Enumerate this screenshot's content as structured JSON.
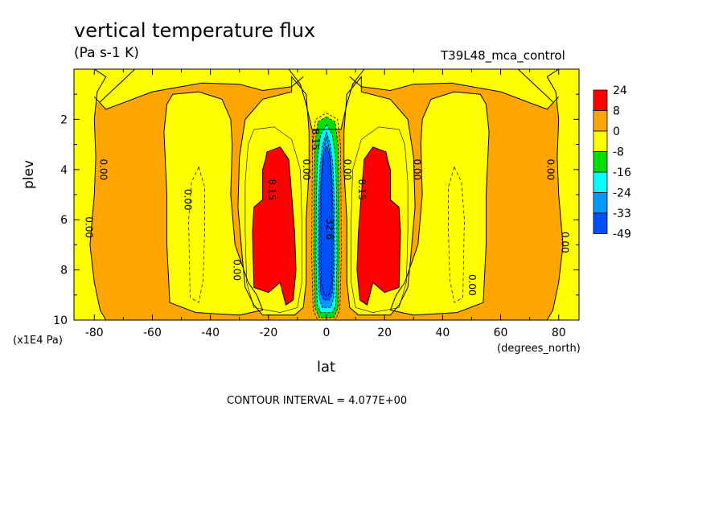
{
  "title": "vertical temperature flux",
  "units": "(Pa s-1 K)",
  "run_id": "T39L48_mca_control",
  "contour_interval": "CONTOUR INTERVAL = 4.077E+00",
  "colors": {
    "c24": "#ff0000",
    "c8": "#ffa500",
    "c0": "#ffff00",
    "cm8": "#00e000",
    "cm16": "#00ffff",
    "cm24": "#0099ff",
    "cm33": "#0050ff"
  },
  "chart_data": {
    "type": "contour",
    "xlabel": "lat",
    "x_units": "(degrees_north)",
    "ylabel": "plev",
    "y_units": "(x1E4 Pa)",
    "xlim": [
      -87,
      87
    ],
    "ylim": [
      10,
      0
    ],
    "x_ticks": [
      -80,
      -60,
      -40,
      -20,
      0,
      20,
      40,
      60,
      80
    ],
    "y_ticks": [
      2,
      4,
      6,
      8,
      10
    ],
    "x_tick_labels": [
      "-80",
      "-60",
      "-40",
      "-20",
      "0",
      "20",
      "40",
      "60",
      "80"
    ],
    "y_tick_labels": [
      "2",
      "4",
      "6",
      "8",
      "10"
    ],
    "colorbar": {
      "levels": [
        "24",
        "8",
        "0",
        "-8",
        "-16",
        "-24",
        "-33",
        "-49"
      ],
      "colors": [
        "#ff0000",
        "#ffa500",
        "#ffff00",
        "#00e000",
        "#00ffff",
        "#0099ff",
        "#0050ff"
      ]
    },
    "contour_labels": [
      {
        "text": "0.00",
        "lat": -82,
        "plev": 6.3
      },
      {
        "text": "0.00",
        "lat": -77,
        "plev": 4.0
      },
      {
        "text": "0.00",
        "lat": -48,
        "plev": 5.2
      },
      {
        "text": "0.00",
        "lat": -31,
        "plev": 8.0
      },
      {
        "text": "8.15",
        "lat": -19,
        "plev": 4.8
      },
      {
        "text": "0.00",
        "lat": -7,
        "plev": 4.0
      },
      {
        "text": "8.15",
        "lat": -4,
        "plev": 2.8
      },
      {
        "text": "-32.6",
        "lat": 1,
        "plev": 6.3
      },
      {
        "text": "0.00",
        "lat": 7,
        "plev": 4.0
      },
      {
        "text": "8.15",
        "lat": 12,
        "plev": 4.8
      },
      {
        "text": "0.00",
        "lat": 31,
        "plev": 4.0
      },
      {
        "text": "0.00",
        "lat": 50,
        "plev": 8.6
      },
      {
        "text": "0.00",
        "lat": 77,
        "plev": 4.0
      },
      {
        "text": "0.00",
        "lat": 82,
        "plev": 6.9
      }
    ]
  }
}
